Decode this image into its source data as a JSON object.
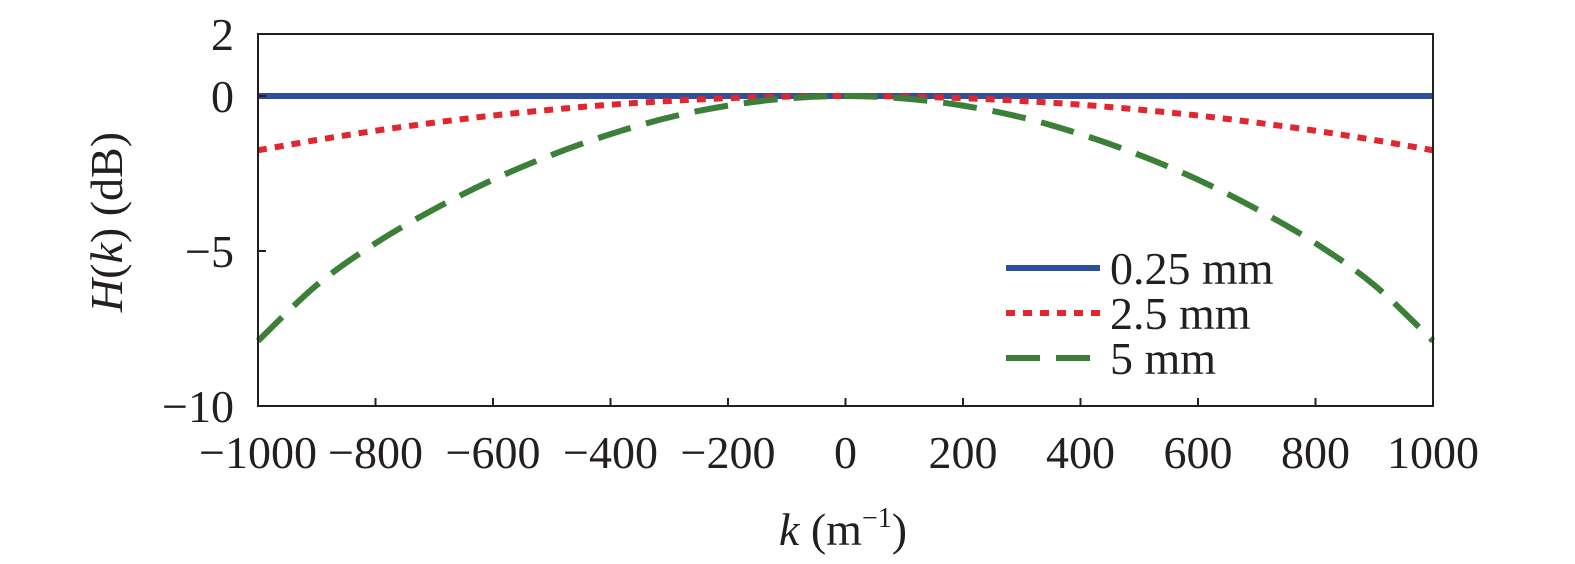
{
  "chart_data": {
    "type": "line",
    "title": "",
    "xlabel": {
      "var": "k",
      "rest": " (m",
      "sup": "−1",
      "close": ")"
    },
    "ylabel": {
      "var1": "H",
      "open": "(",
      "var2": "k",
      "rest": ") (dB)"
    },
    "xlim": [
      -1000,
      1000
    ],
    "ylim": [
      -10,
      2
    ],
    "xticks": [
      -1000,
      -800,
      -600,
      -400,
      -200,
      0,
      200,
      400,
      600,
      800,
      1000
    ],
    "xtick_labels": [
      "−1000",
      "−800",
      "−600",
      "−400",
      "−200",
      "0",
      "200",
      "400",
      "600",
      "800",
      "1000"
    ],
    "yticks": [
      -10,
      -5,
      0,
      2
    ],
    "ytick_labels": [
      "−10",
      "−5",
      "0",
      "2"
    ],
    "grid": false,
    "legend_position": "lower-right",
    "x": [
      -1000,
      -900,
      -800,
      -700,
      -600,
      -500,
      -400,
      -300,
      -200,
      -100,
      0,
      100,
      200,
      300,
      400,
      500,
      600,
      700,
      800,
      900,
      1000
    ],
    "series": [
      {
        "name": "0.25 mm",
        "color": "#2e4f9e",
        "style": "solid",
        "values": [
          0,
          0,
          0,
          0,
          0,
          0,
          0,
          0,
          0,
          0,
          0,
          0,
          0,
          0,
          0,
          0,
          0,
          0,
          0,
          0,
          0
        ]
      },
      {
        "name": "2.5 mm",
        "color": "#e0262f",
        "style": "dotted",
        "values": [
          -1.75,
          -1.42,
          -1.12,
          -0.86,
          -0.63,
          -0.44,
          -0.28,
          -0.16,
          -0.07,
          -0.02,
          0,
          -0.02,
          -0.07,
          -0.16,
          -0.28,
          -0.44,
          -0.63,
          -0.86,
          -1.12,
          -1.42,
          -1.75
        ]
      },
      {
        "name": "5 mm",
        "color": "#3b7f38",
        "style": "dashed",
        "values": [
          -7.9,
          -6.1,
          -4.75,
          -3.65,
          -2.7,
          -1.9,
          -1.23,
          -0.69,
          -0.31,
          -0.08,
          0,
          -0.08,
          -0.31,
          -0.69,
          -1.23,
          -1.9,
          -2.7,
          -3.65,
          -4.75,
          -6.1,
          -7.9
        ]
      }
    ]
  }
}
